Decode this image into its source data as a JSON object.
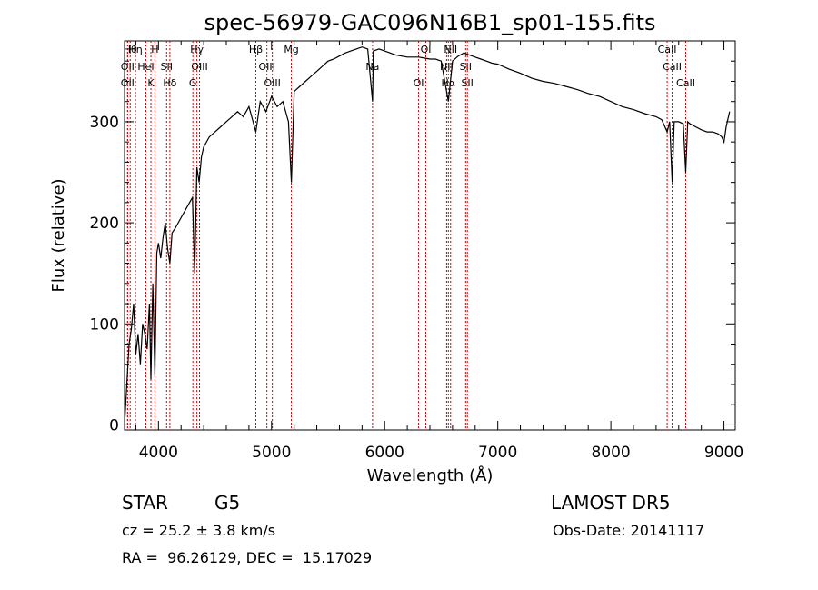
{
  "chart_data": {
    "type": "line",
    "title": "spec-56979-GAC096N16B1_sp01-155.fits",
    "xlabel": "Wavelength (Å)",
    "ylabel": "Flux (relative)",
    "xlim": [
      3700,
      9100
    ],
    "ylim": [
      -5,
      380
    ],
    "x_ticks": [
      4000,
      5000,
      6000,
      7000,
      8000,
      9000
    ],
    "y_ticks": [
      0,
      100,
      200,
      300
    ],
    "grid": false,
    "series": [
      {
        "x": [
          3700,
          3720,
          3740,
          3760,
          3780,
          3800,
          3820,
          3840,
          3860,
          3880,
          3900,
          3920,
          3933,
          3950,
          3968,
          3985,
          4000,
          4020,
          4040,
          4060,
          4080,
          4101,
          4120,
          4150,
          4200,
          4250,
          4300,
          4320,
          4340,
          4360,
          4380,
          4400,
          4450,
          4500,
          4550,
          4600,
          4650,
          4700,
          4750,
          4800,
          4861,
          4900,
          4950,
          5000,
          5050,
          5100,
          5150,
          5175,
          5200,
          5250,
          5300,
          5350,
          5400,
          5450,
          5500,
          5550,
          5600,
          5650,
          5700,
          5750,
          5800,
          5850,
          5893,
          5900,
          5950,
          6000,
          6050,
          6100,
          6150,
          6200,
          6250,
          6300,
          6350,
          6400,
          6450,
          6500,
          6563,
          6600,
          6650,
          6700,
          6750,
          6800,
          6850,
          6900,
          6950,
          7000,
          7100,
          7200,
          7300,
          7400,
          7500,
          7600,
          7700,
          7800,
          7900,
          8000,
          8100,
          8200,
          8300,
          8400,
          8450,
          8498,
          8520,
          8542,
          8560,
          8600,
          8640,
          8662,
          8680,
          8700,
          8750,
          8800,
          8850,
          8900,
          8950,
          8980,
          9000,
          9020,
          9050
        ],
        "y": [
          0,
          40,
          80,
          95,
          120,
          70,
          90,
          60,
          100,
          90,
          75,
          120,
          45,
          140,
          50,
          170,
          180,
          165,
          185,
          200,
          175,
          160,
          190,
          195,
          205,
          215,
          225,
          150,
          255,
          240,
          265,
          275,
          285,
          290,
          295,
          300,
          305,
          310,
          305,
          315,
          290,
          320,
          310,
          325,
          315,
          320,
          300,
          240,
          330,
          335,
          340,
          345,
          350,
          355,
          360,
          362,
          365,
          368,
          370,
          372,
          374,
          372,
          320,
          370,
          372,
          370,
          368,
          366,
          365,
          364,
          364,
          364,
          363,
          362,
          362,
          360,
          320,
          360,
          365,
          368,
          366,
          364,
          362,
          360,
          358,
          357,
          352,
          348,
          343,
          340,
          338,
          335,
          332,
          328,
          325,
          320,
          315,
          312,
          308,
          305,
          302,
          290,
          300,
          240,
          300,
          300,
          298,
          250,
          300,
          298,
          295,
          292,
          290,
          290,
          288,
          285,
          280,
          295,
          310
        ]
      }
    ],
    "line_marks": [
      {
        "x": 3750,
        "label": "Hθ"
      },
      {
        "x": 3727,
        "label": "OII"
      },
      {
        "x": 3727,
        "label": "OII"
      },
      {
        "x": 3797,
        "label": "Hη"
      },
      {
        "x": 3889,
        "label": "HeI"
      },
      {
        "x": 3933,
        "label": "K"
      },
      {
        "x": 3968,
        "label": "H"
      },
      {
        "x": 4072,
        "label": "SII"
      },
      {
        "x": 4101,
        "label": "Hδ"
      },
      {
        "x": 4340,
        "label": "Hγ"
      },
      {
        "x": 4363,
        "label": "OIII"
      },
      {
        "x": 4304,
        "label": "G"
      },
      {
        "x": 4861,
        "label": "Hβ"
      },
      {
        "x": 4959,
        "label": "OIII"
      },
      {
        "x": 5007,
        "label": "OIII"
      },
      {
        "x": 5175,
        "label": "Mg"
      },
      {
        "x": 5893,
        "label": "Na"
      },
      {
        "x": 6300,
        "label": "OI"
      },
      {
        "x": 6364,
        "label": "OI"
      },
      {
        "x": 6548,
        "label": "NII"
      },
      {
        "x": 6563,
        "label": "Hα"
      },
      {
        "x": 6583,
        "label": "NII"
      },
      {
        "x": 6716,
        "label": "SII"
      },
      {
        "x": 6731,
        "label": "SII"
      },
      {
        "x": 8498,
        "label": "CaII"
      },
      {
        "x": 8542,
        "label": "CaII"
      },
      {
        "x": 8662,
        "label": "CaII"
      }
    ]
  },
  "info": {
    "object_class": "STAR",
    "subclass": "G5",
    "survey": "LAMOST DR5",
    "cz": "cz = 25.2 ± 3.8 km/s",
    "obs_date": "Obs-Date: 20141117",
    "coords": "RA =  96.26129, DEC =  15.17029"
  },
  "colors": {
    "line": "#000000",
    "markers": "#cc0000",
    "background": "#ffffff"
  }
}
